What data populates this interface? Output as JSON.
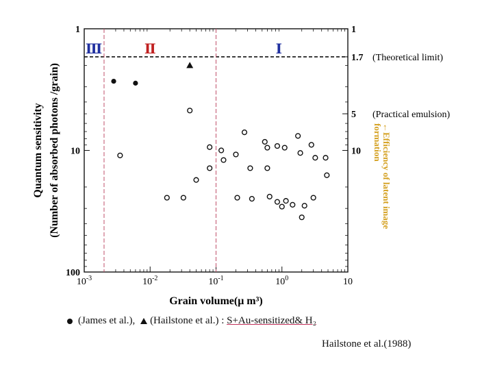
{
  "chart_data": {
    "type": "scatter",
    "title": "",
    "xlabel": "Grain volume(μ m³)",
    "ylabel": "Quantum sensitivity",
    "ylabel2": "(Number of absorbed photons /grain)",
    "x_scale": "log",
    "xlim": [
      0.001,
      10
    ],
    "y_scale": "log (inverted)",
    "ylim": [
      1,
      100
    ],
    "x_ticks": [
      {
        "value": 0.001,
        "base": "10",
        "exp": "-3"
      },
      {
        "value": 0.01,
        "base": "10",
        "exp": "-2"
      },
      {
        "value": 0.1,
        "base": "10",
        "exp": "-1"
      },
      {
        "value": 1,
        "base": "10",
        "exp": "0"
      },
      {
        "value": 10,
        "base": "10",
        "exp": ""
      }
    ],
    "y_ticks_left": [
      {
        "value": 1,
        "label": "1"
      },
      {
        "value": 10,
        "label": "10"
      },
      {
        "value": 100,
        "label": "100"
      }
    ],
    "y_ticks_right": [
      {
        "value": 1,
        "label": "1"
      },
      {
        "value": 1.7,
        "label": "1.7",
        "note": "(Theoretical limit)"
      },
      {
        "value": 5,
        "label": "5",
        "note": "(Practical emulsion)"
      },
      {
        "value": 10,
        "label": "10",
        "note": ""
      }
    ],
    "right_axis_label": "←Efficiency of latent image formation",
    "right_axis_color": "#d4a020",
    "region_lines_x": [
      0.002,
      0.1
    ],
    "regions": [
      {
        "label": "Ⅲ",
        "x": 0.0014,
        "color": "#2030a0"
      },
      {
        "label": "Ⅱ",
        "x": 0.01,
        "color": "#c02020"
      },
      {
        "label": "Ⅰ",
        "x": 0.9,
        "color": "#2030a0"
      }
    ],
    "theoretical_limit_y": 1.7,
    "series": [
      {
        "name": "James et al.",
        "marker": "filled-circle",
        "points": [
          [
            0.0028,
            2.7
          ],
          [
            0.006,
            2.8
          ]
        ]
      },
      {
        "name": "Hailstone et al.",
        "marker": "filled-triangle",
        "points": [
          [
            0.04,
            2.0
          ]
        ]
      },
      {
        "name": "",
        "marker": "open-circle",
        "points": [
          [
            0.0035,
            11.0
          ],
          [
            0.018,
            24.5
          ],
          [
            0.032,
            24.5
          ],
          [
            0.04,
            4.7
          ],
          [
            0.05,
            17.5
          ],
          [
            0.08,
            14.0
          ],
          [
            0.08,
            9.4
          ],
          [
            0.12,
            10.0
          ],
          [
            0.13,
            12.0
          ],
          [
            0.2,
            10.8
          ],
          [
            0.21,
            24.5
          ],
          [
            0.27,
            7.1
          ],
          [
            0.33,
            14.0
          ],
          [
            0.35,
            25.0
          ],
          [
            0.55,
            8.5
          ],
          [
            0.6,
            9.5
          ],
          [
            0.6,
            14.0
          ],
          [
            0.65,
            24.0
          ],
          [
            0.85,
            9.2
          ],
          [
            0.85,
            26.5
          ],
          [
            1.0,
            29.0
          ],
          [
            1.1,
            9.5
          ],
          [
            1.15,
            26.0
          ],
          [
            1.45,
            28.0
          ],
          [
            1.75,
            7.6
          ],
          [
            1.9,
            10.5
          ],
          [
            2.0,
            35.5
          ],
          [
            2.2,
            28.5
          ],
          [
            2.8,
            9.0
          ],
          [
            3.0,
            24.5
          ],
          [
            3.2,
            11.5
          ],
          [
            4.6,
            11.5
          ],
          [
            4.8,
            16.0
          ]
        ]
      }
    ]
  },
  "legend": {
    "james_label": "(James et al.),",
    "hailstone_label": "(Hailstone et al.) : ",
    "condition": "S+Au-sensitized& H₂"
  },
  "citation": "Hailstone et al.(1988)"
}
